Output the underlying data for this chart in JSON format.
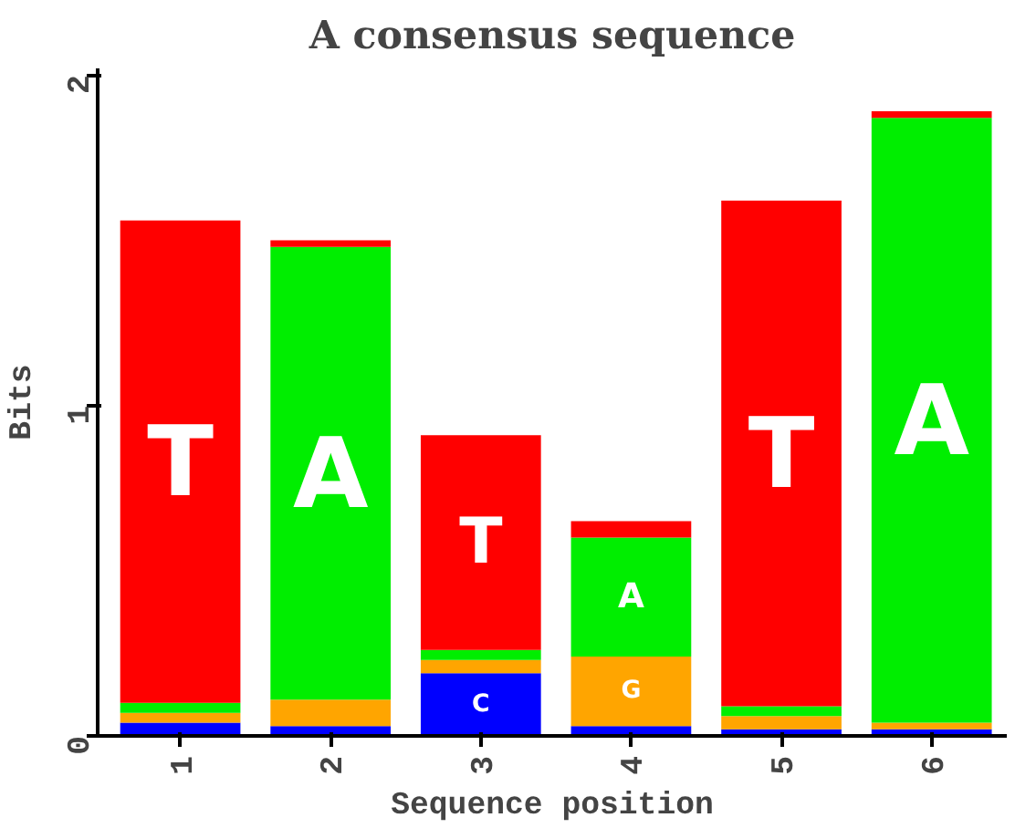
{
  "chart_data": {
    "type": "bar",
    "title": "A consensus sequence",
    "xlabel": "Sequence position",
    "ylabel": "Bits",
    "categories": [
      "1",
      "2",
      "3",
      "4",
      "5",
      "6"
    ],
    "stacked": true,
    "ylim": [
      0,
      2.02
    ],
    "yticks": [
      0,
      1,
      2
    ],
    "grid": false,
    "legend": false,
    "series": [
      {
        "name": "C",
        "color": "#0000ff",
        "values": [
          0.04,
          0.03,
          0.19,
          0.03,
          0.02,
          0.02
        ]
      },
      {
        "name": "G",
        "color": "#ffa500",
        "values": [
          0.03,
          0.08,
          0.04,
          0.21,
          0.04,
          0.02
        ]
      },
      {
        "name": "A",
        "color": "#00ee00",
        "values": [
          0.03,
          1.37,
          0.03,
          0.36,
          0.03,
          1.83
        ]
      },
      {
        "name": "T",
        "color": "#ff0000",
        "values": [
          1.46,
          0.02,
          0.65,
          0.05,
          1.53,
          0.02
        ]
      }
    ]
  }
}
